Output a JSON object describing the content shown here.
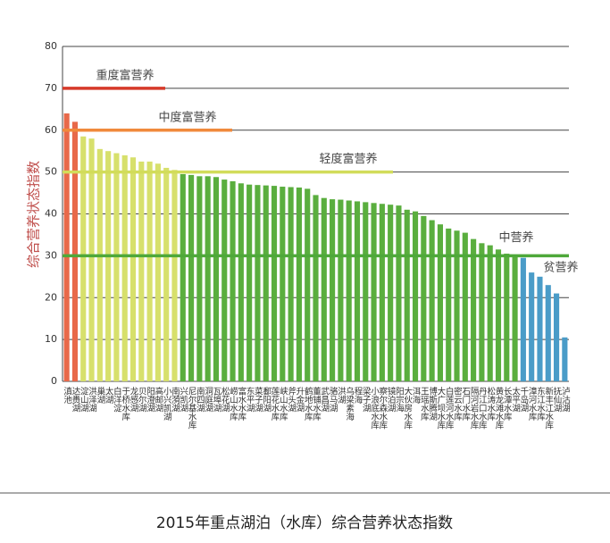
{
  "chart_data": {
    "type": "bar",
    "title": "2015年重点湖泊（水库）综合营养状态指数",
    "y_label": "综合营养状态指数",
    "categories": [
      "滇池",
      "达赉湖",
      "淀山湖",
      "洪泽湖",
      "巢湖",
      "太湖",
      "白洋淀",
      "于桥水库",
      "龙感湖",
      "贝尔湖",
      "阳澄湖",
      "高邮湖",
      "小兴凯湖",
      "南漪湖",
      "兴凯湖",
      "尼尔基水库",
      "南四湖",
      "洞庭湖",
      "瓦埠湖",
      "松花湖",
      "崂山水库",
      "富水水库",
      "东平湖",
      "菜子湖",
      "鄱阳湖",
      "莲花水库",
      "峡山水库",
      "斧头湖",
      "升金湖",
      "鹤地水库",
      "董铺水库",
      "武昌湖",
      "骆马湖",
      "洪湖",
      "乌梁素海",
      "程海",
      "梁子湖",
      "小浪底水库",
      "察尔森水库",
      "镜泊湖",
      "阳宗海",
      "大伙房水库",
      "洱海",
      "王瑶水库",
      "博斯腾湖",
      "大广坝水库",
      "白莲河水库",
      "密云水库",
      "石门水库",
      "隔河岩水库",
      "丹江口水库",
      "松涛水库",
      "黄龙滩水库",
      "长潭水库",
      "太平湖",
      "千岛湖",
      "漳河水库",
      "东江水库",
      "新丰江水库",
      "抚仙湖",
      "泸沽湖"
    ],
    "values": [
      64,
      62,
      58.5,
      58,
      55.5,
      55,
      54.5,
      54,
      53.5,
      52.5,
      52.5,
      52,
      51,
      50.5,
      49.5,
      49.3,
      49,
      49,
      48.8,
      48.2,
      47.8,
      47.3,
      47,
      46.9,
      46.8,
      46.7,
      46.5,
      46.4,
      46.3,
      46,
      44.5,
      43.8,
      43.5,
      43.4,
      43.2,
      43,
      42.8,
      42.6,
      42.4,
      42.2,
      42,
      41,
      40.6,
      39.5,
      38.5,
      37.5,
      36.5,
      36,
      35.5,
      34,
      33,
      32.5,
      31.5,
      30.5,
      30.2,
      29.5,
      26,
      25,
      23,
      21,
      10.5
    ],
    "colors": [
      "#e8694a",
      "#e8694a",
      "#d7e06c",
      "#d7e06c",
      "#d7e06c",
      "#d7e06c",
      "#d7e06c",
      "#d7e06c",
      "#d7e06c",
      "#d7e06c",
      "#d7e06c",
      "#d7e06c",
      "#d7e06c",
      "#d7e06c",
      "#5aae3e",
      "#5aae3e",
      "#5aae3e",
      "#5aae3e",
      "#5aae3e",
      "#5aae3e",
      "#5aae3e",
      "#5aae3e",
      "#5aae3e",
      "#5aae3e",
      "#5aae3e",
      "#5aae3e",
      "#5aae3e",
      "#5aae3e",
      "#5aae3e",
      "#5aae3e",
      "#5aae3e",
      "#5aae3e",
      "#5aae3e",
      "#5aae3e",
      "#5aae3e",
      "#5aae3e",
      "#5aae3e",
      "#5aae3e",
      "#5aae3e",
      "#5aae3e",
      "#5aae3e",
      "#5aae3e",
      "#5aae3e",
      "#5aae3e",
      "#5aae3e",
      "#5aae3e",
      "#5aae3e",
      "#5aae3e",
      "#5aae3e",
      "#5aae3e",
      "#5aae3e",
      "#5aae3e",
      "#5aae3e",
      "#5aae3e",
      "#5aae3e",
      "#4a9cc8",
      "#4a9cc8",
      "#4a9cc8",
      "#4a9cc8",
      "#4a9cc8",
      "#4a9cc8"
    ],
    "thresholds": [
      {
        "label": "重度富营养",
        "value": 70,
        "color": "#d63a2a"
      },
      {
        "label": "中度富营养",
        "value": 60,
        "color": "#f08a3c"
      },
      {
        "label": "轻度富营养",
        "value": 50,
        "color": "#d2dc5a"
      },
      {
        "label": "中营养",
        "value": 30,
        "color": "#4ea83a"
      },
      {
        "label": "贫营养"
      }
    ],
    "ylim": [
      0,
      80
    ],
    "yticks": [
      0,
      10,
      20,
      30,
      40,
      50,
      60,
      70,
      80
    ],
    "grid": true
  }
}
